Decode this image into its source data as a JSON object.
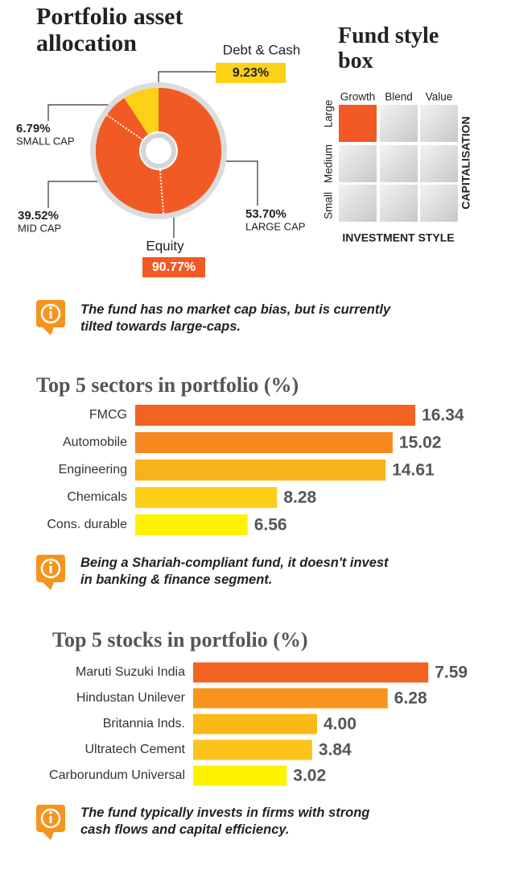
{
  "chart_data": [
    {
      "type": "donut",
      "title": "Portfolio asset allocation",
      "categories": [
        "Debt & Cash",
        "Equity"
      ],
      "values": [
        9.23,
        90.77
      ],
      "value_labels": [
        "9.23%",
        "90.77%"
      ],
      "colors": [
        "#fcd116",
        "#f15a24"
      ],
      "equity_split": {
        "categories": [
          "LARGE CAP",
          "MID CAP",
          "SMALL CAP"
        ],
        "values": [
          53.7,
          39.52,
          6.79
        ],
        "value_labels": [
          "53.70%",
          "39.52%",
          "6.79%"
        ]
      }
    },
    {
      "type": "style_box",
      "title": "Fund style box",
      "columns": [
        "Growth",
        "Blend",
        "Value"
      ],
      "rows": [
        "Large",
        "Medium",
        "Small"
      ],
      "cells": [
        [
          1,
          0,
          0
        ],
        [
          0,
          0,
          0
        ],
        [
          0,
          0,
          0
        ]
      ],
      "xlabel": "INVESTMENT STYLE",
      "ylabel": "CAPITALISATION",
      "color": "#f15a24"
    },
    {
      "type": "hbar",
      "title": "Top 5 sectors in portfolio (%)",
      "categories": [
        "FMCG",
        "Automobile",
        "Engineering",
        "Chemicals",
        "Cons. durable"
      ],
      "values": [
        16.34,
        15.02,
        14.61,
        8.28,
        6.56
      ],
      "colors": [
        "#f26322",
        "#f5891f",
        "#f9b21b",
        "#fdd017",
        "#fff200"
      ]
    },
    {
      "type": "hbar",
      "title": "Top 5 stocks in portfolio (%)",
      "categories": [
        "Maruti Suzuki India",
        "Hindustan Unilever",
        "Britannia Inds.",
        "Ultratech Cement",
        "Carborundum Universal"
      ],
      "values": [
        7.59,
        6.28,
        4.0,
        3.84,
        3.02
      ],
      "value_labels": [
        "7.59",
        "6.28",
        "4.00",
        "3.84",
        "3.02"
      ],
      "colors": [
        "#f26322",
        "#f7941d",
        "#fbb917",
        "#fcc31a",
        "#fff200"
      ]
    }
  ],
  "notes": [
    "The fund has no market cap bias, but is currently tilted towards large-caps.",
    "Being a Shariah-compliant fund, it doesn't invest in banking & finance segment.",
    "The fund typically invests in firms with strong cash flows and capital efficiency."
  ]
}
